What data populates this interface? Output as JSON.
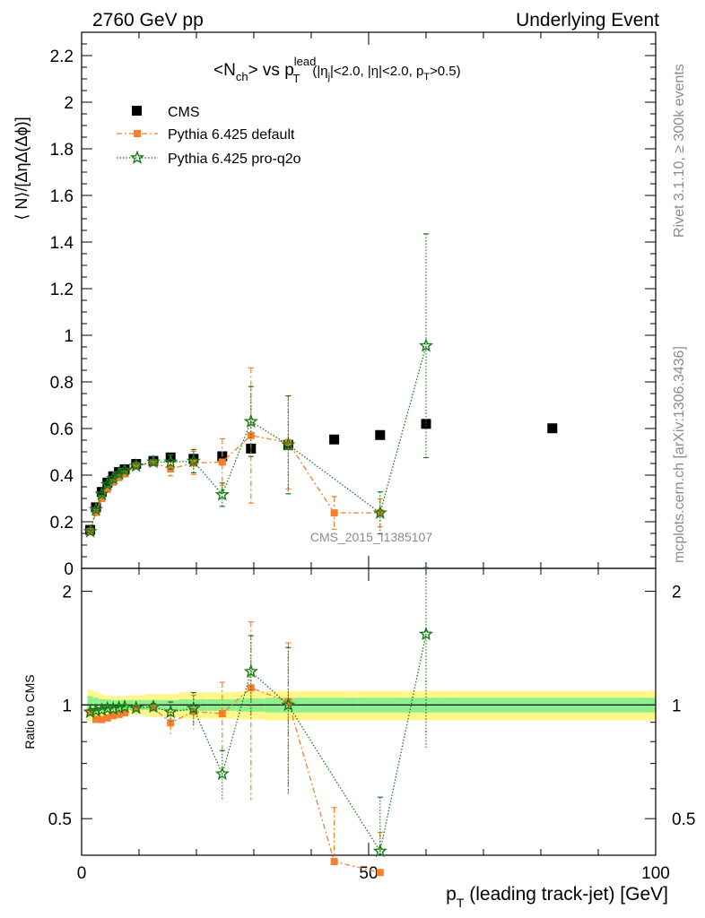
{
  "header": {
    "left": "2760 GeV pp",
    "right": "Underlying Event"
  },
  "side": {
    "rivet": "Rivet 3.1.10, ≥ 300k events",
    "mcplots": "mcplots.cern.ch [arXiv:1306.3436]"
  },
  "title": {
    "main": "<N",
    "main_sub": "ch",
    "vs": "> vs p",
    "vs_sup": "lead",
    "vs_sub": "T",
    "cuts_a": "(|η",
    "cuts_a_sub": "j",
    "cuts_b": "|<2.0, |η|<2.0, p",
    "cuts_b_sub": "T",
    "cuts_c": ">0.5)"
  },
  "analysis_label": "CMS_2015_I1385107",
  "axes": {
    "ylabel_top": "⟨ N⟩/[ΔηΔ(Δϕ)]",
    "ylabel_bottom": "Ratio to CMS",
    "xlabel_p": "p",
    "xlabel_sub": "T",
    "xlabel_rest": " (leading track-jet) [GeV]"
  },
  "legend": [
    {
      "label": "CMS",
      "color": "#000000",
      "marker": "square"
    },
    {
      "label": "Pythia 6.425 default",
      "color": "#f57f2b",
      "marker": "square",
      "dash": "dashdot"
    },
    {
      "label": "Pythia 6.425 pro-q2o",
      "color": "#197b19",
      "marker": "star",
      "dash": "dotted"
    }
  ],
  "colors": {
    "band_inner": "#8cf08c",
    "band_outer": "#fff78c"
  },
  "chart_data": {
    "type": "scatter",
    "xlim": [
      0,
      100
    ],
    "ylim_main": [
      0,
      2.3
    ],
    "ylim_ratio": [
      0.4,
      2.3
    ],
    "ratio_scale": "log",
    "xticks": [
      0,
      50,
      100
    ],
    "yticks_main": [
      0,
      0.2,
      0.4,
      0.6,
      0.8,
      1,
      1.2,
      1.4,
      1.6,
      1.8,
      2,
      2.2
    ],
    "yticks_main_labels": [
      "0",
      "0.2",
      "0.4",
      "0.6",
      "0.8",
      "1",
      "1.2",
      "1.4",
      "1.6",
      "1.8",
      "2",
      "2.2"
    ],
    "yticks_ratio": [
      0.5,
      1,
      2
    ],
    "yticks_ratio_labels": [
      "0.5",
      "1",
      "2"
    ],
    "series": [
      {
        "name": "CMS",
        "x": [
          1.5,
          2.5,
          3.5,
          4.5,
          5.5,
          6.5,
          7.5,
          9.5,
          12.5,
          15.5,
          19.5,
          24.5,
          29.5,
          36,
          44,
          52,
          60,
          82
        ],
        "y": [
          0.165,
          0.262,
          0.328,
          0.368,
          0.395,
          0.413,
          0.425,
          0.448,
          0.461,
          0.476,
          0.47,
          0.481,
          0.514,
          0.53,
          0.553,
          0.572,
          0.62,
          0.601
        ]
      },
      {
        "name": "Pythia 6.425 default",
        "x": [
          1.5,
          2.5,
          3.5,
          4.5,
          5.5,
          6.5,
          7.5,
          9.5,
          12.5,
          15.5,
          19.5,
          24.5,
          29.5,
          36,
          44,
          52
        ],
        "y": [
          0.158,
          0.24,
          0.3,
          0.34,
          0.37,
          0.39,
          0.405,
          0.44,
          0.453,
          0.427,
          0.452,
          0.456,
          0.57,
          0.54,
          0.238,
          0.238
        ],
        "yerr": [
          0.005,
          0.006,
          0.006,
          0.006,
          0.006,
          0.006,
          0.007,
          0.008,
          0.01,
          0.03,
          0.05,
          0.1,
          0.29,
          0.2,
          0.07,
          0.06
        ],
        "ratio": [
          0.958,
          0.916,
          0.915,
          0.924,
          0.937,
          0.944,
          0.953,
          0.982,
          0.983,
          0.897,
          0.962,
          0.948,
          1.11,
          1.02,
          0.385,
          0.36
        ],
        "ratio_err": [
          0.01,
          0.01,
          0.01,
          0.01,
          0.01,
          0.01,
          0.01,
          0.01,
          0.02,
          0.06,
          0.1,
          0.2,
          0.55,
          0.44,
          0.15,
          0.1
        ]
      },
      {
        "name": "Pythia 6.425 pro-q2o",
        "x": [
          1.5,
          2.5,
          3.5,
          4.5,
          5.5,
          6.5,
          7.5,
          9.5,
          12.5,
          15.5,
          19.5,
          24.5,
          29.5,
          36,
          52,
          60
        ],
        "y": [
          0.158,
          0.253,
          0.318,
          0.36,
          0.386,
          0.406,
          0.42,
          0.44,
          0.456,
          0.456,
          0.46,
          0.316,
          0.63,
          0.53,
          0.238,
          0.955
        ],
        "yerr": [
          0.005,
          0.006,
          0.006,
          0.006,
          0.006,
          0.006,
          0.007,
          0.008,
          0.01,
          0.03,
          0.05,
          0.05,
          0.15,
          0.21,
          0.09,
          0.48
        ],
        "ratio": [
          0.958,
          0.966,
          0.97,
          0.978,
          0.977,
          0.983,
          0.988,
          0.982,
          0.989,
          0.958,
          0.979,
          0.657,
          1.226,
          1.0,
          0.41,
          1.54
        ],
        "ratio_err": [
          0.01,
          0.01,
          0.01,
          0.01,
          0.01,
          0.01,
          0.01,
          0.01,
          0.02,
          0.06,
          0.1,
          0.1,
          0.3,
          0.42,
          0.16,
          0.77
        ]
      }
    ],
    "band": {
      "x_edges": [
        1,
        2,
        3,
        4,
        5,
        6,
        7,
        8,
        11,
        14,
        17,
        22,
        27,
        32,
        40,
        48,
        56,
        64,
        100
      ],
      "inner": [
        0.055,
        0.045,
        0.035,
        0.035,
        0.03,
        0.03,
        0.03,
        0.03,
        0.03,
        0.03,
        0.035,
        0.035,
        0.04,
        0.045,
        0.045,
        0.045,
        0.045,
        0.045
      ],
      "outer": [
        0.095,
        0.085,
        0.065,
        0.06,
        0.055,
        0.055,
        0.055,
        0.06,
        0.07,
        0.07,
        0.08,
        0.08,
        0.085,
        0.09,
        0.09,
        0.09,
        0.09,
        0.09
      ]
    }
  }
}
